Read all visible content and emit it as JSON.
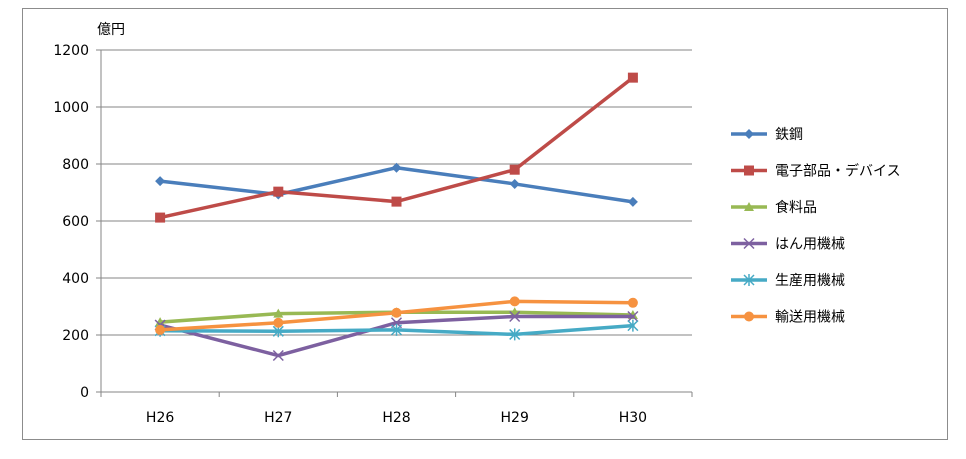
{
  "chart_data": {
    "type": "line",
    "title": "",
    "ylabel": "億円",
    "xlabel": "",
    "categories": [
      "H26",
      "H27",
      "H28",
      "H29",
      "H30"
    ],
    "ylim": [
      0,
      1200
    ],
    "yticks": [
      0,
      200,
      400,
      600,
      800,
      1000,
      1200
    ],
    "grid": true,
    "legend_position": "right",
    "series": [
      {
        "name": "鉄鋼",
        "values": [
          740,
          693,
          787,
          730,
          667
        ],
        "color": "#4a7ebb",
        "marker": "diamond"
      },
      {
        "name": "電子部品・デバイス",
        "values": [
          612,
          703,
          668,
          780,
          1103
        ],
        "color": "#be4b48",
        "marker": "square"
      },
      {
        "name": "食料品",
        "values": [
          245,
          275,
          280,
          280,
          270
        ],
        "color": "#98b954",
        "marker": "triangle"
      },
      {
        "name": "はん用機械",
        "values": [
          235,
          128,
          243,
          265,
          265
        ],
        "color": "#7d60a0",
        "marker": "x"
      },
      {
        "name": "生産用機械",
        "values": [
          215,
          213,
          218,
          202,
          233
        ],
        "color": "#46aac5",
        "marker": "star"
      },
      {
        "name": "輸送用機械",
        "values": [
          218,
          243,
          278,
          318,
          313
        ],
        "color": "#f69240",
        "marker": "circle"
      }
    ]
  }
}
